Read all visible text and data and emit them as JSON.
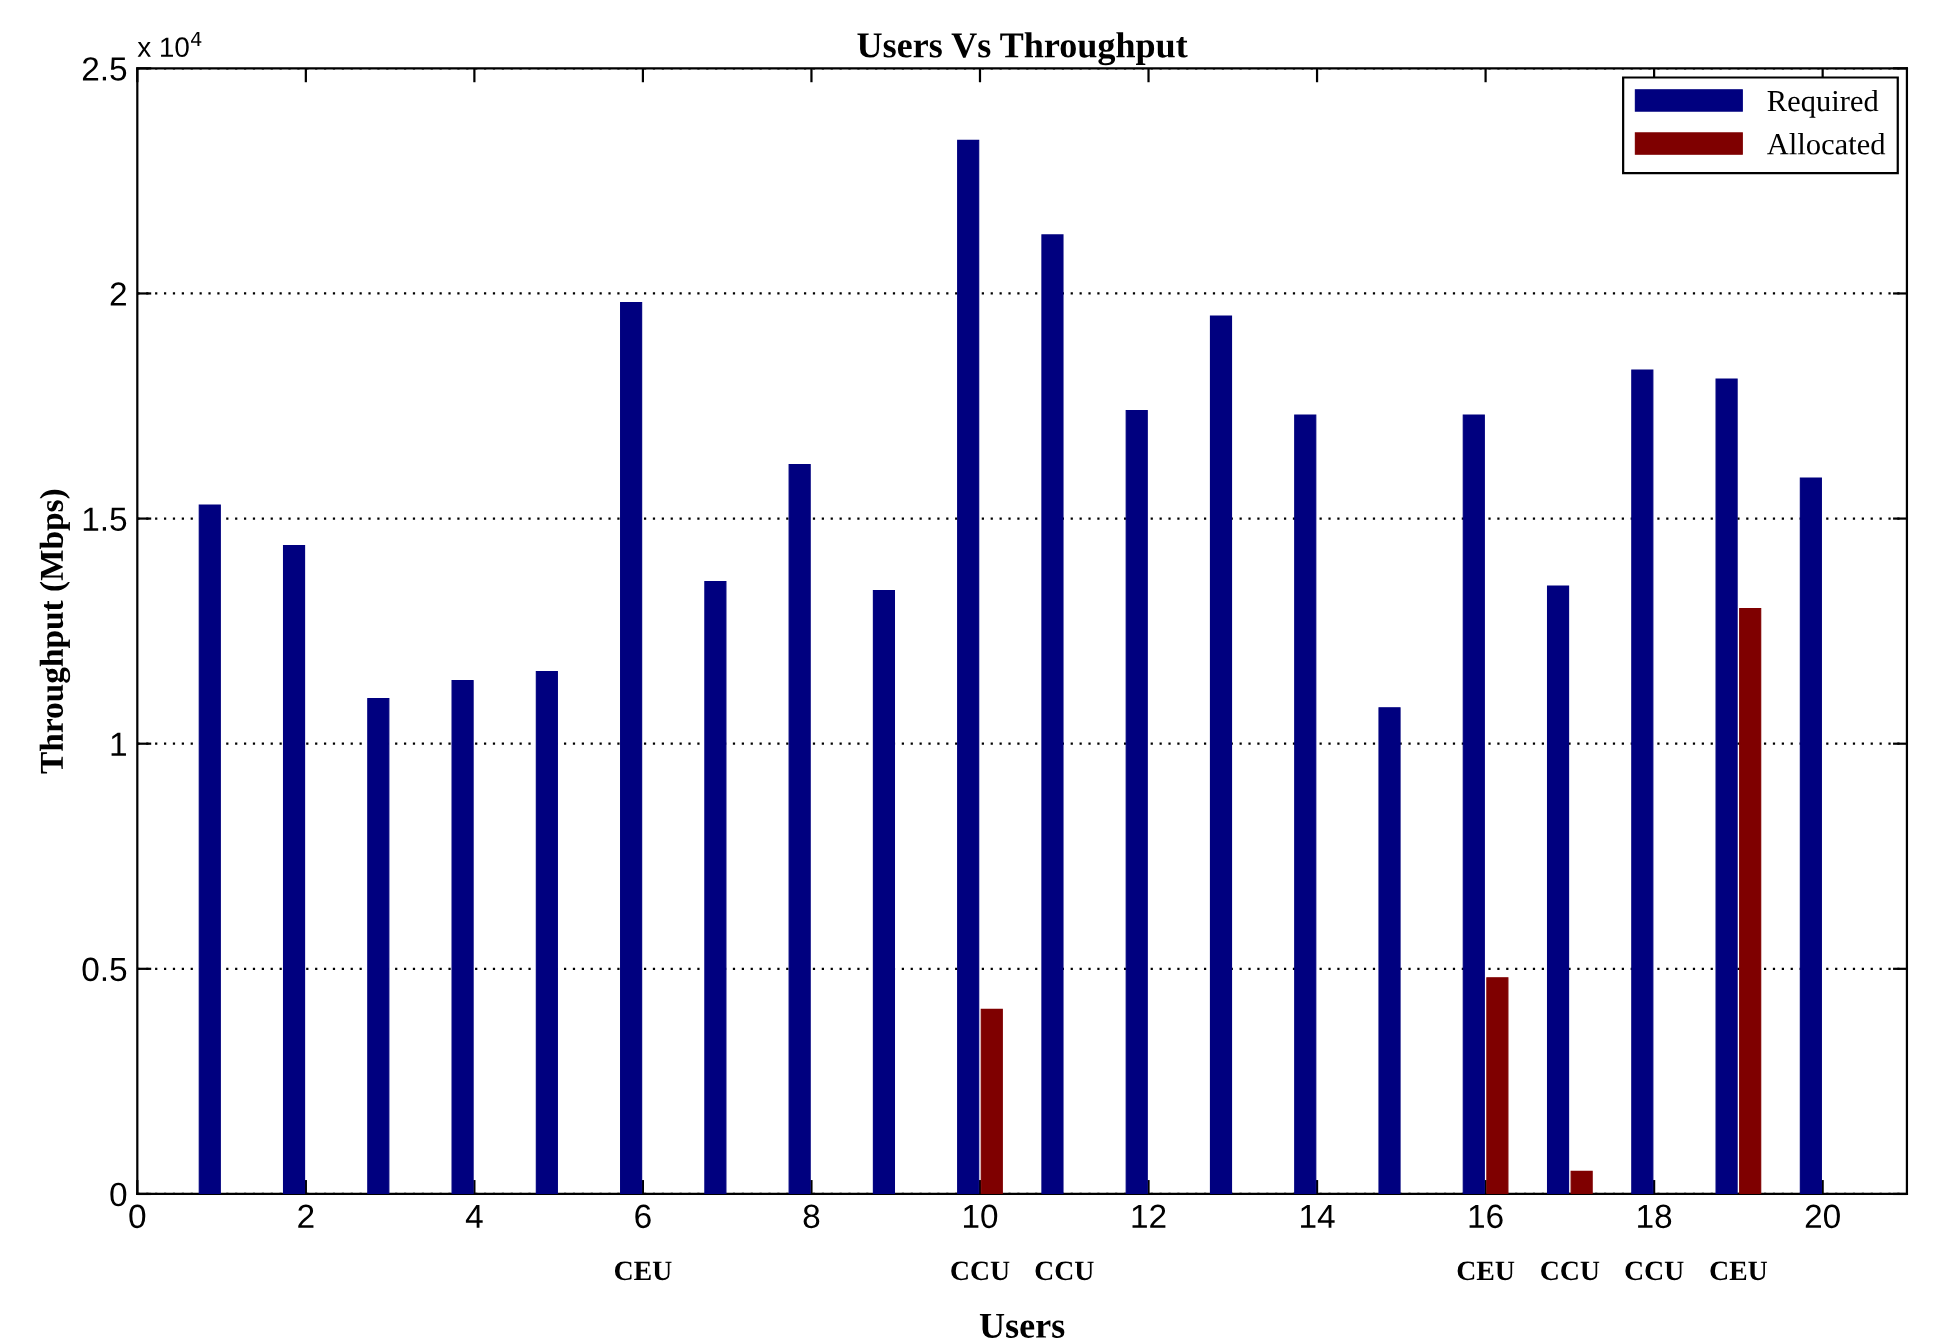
{
  "chart_data": {
    "type": "bar",
    "title": "Users Vs Throughput",
    "xlabel": "Users",
    "ylabel": "Throughput (Mbps)",
    "x": [
      1,
      2,
      3,
      4,
      5,
      6,
      7,
      8,
      9,
      10,
      11,
      12,
      13,
      14,
      15,
      16,
      17,
      18,
      19,
      20
    ],
    "series": [
      {
        "name": "Required",
        "color": "#00007f",
        "values": [
          1.53,
          1.44,
          1.1,
          1.14,
          1.16,
          1.98,
          1.36,
          1.62,
          1.34,
          2.34,
          2.13,
          1.74,
          1.95,
          1.73,
          1.08,
          1.73,
          1.35,
          1.83,
          1.81,
          1.59
        ]
      },
      {
        "name": "Allocated",
        "color": "#7f0000",
        "values": [
          null,
          null,
          null,
          null,
          null,
          null,
          null,
          null,
          null,
          0.41,
          null,
          null,
          null,
          null,
          null,
          0.48,
          0.05,
          null,
          1.3,
          null
        ]
      }
    ],
    "xlim": [
      0,
      21
    ],
    "xticks": [
      0,
      2,
      4,
      6,
      8,
      10,
      12,
      14,
      16,
      18,
      20
    ],
    "ylim": [
      0,
      2.5
    ],
    "yticks": [
      0,
      0.5,
      1,
      1.5,
      2,
      2.5
    ],
    "annotations": [
      "x 10$^{4}$",
      {
        "text": "CEU",
        "x": 6,
        "y": 0
      },
      {
        "text": "CCU",
        "x": 10,
        "y": 0
      },
      {
        "text": "CCU",
        "x": 11,
        "y": 0
      },
      {
        "text": "CEU",
        "x": 16,
        "y": 0
      },
      {
        "text": "CCU",
        "x": 17,
        "y": 0
      },
      {
        "text": "CCU",
        "x": 18,
        "y": 0
      },
      {
        "text": "CEU",
        "x": 19,
        "y": 0
      }
    ],
    "grid": "y",
    "legend": "top right"
  }
}
